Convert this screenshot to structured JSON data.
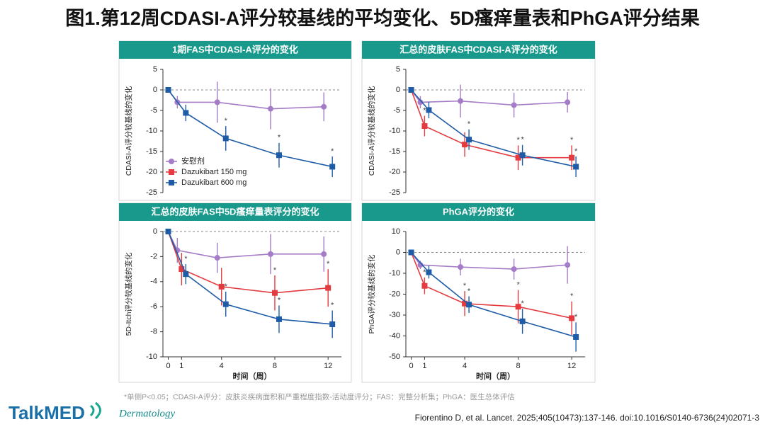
{
  "title": "图1.第12周CDASI-A评分较基线的平均变化、5D瘙痒量表和PhGA评分结果",
  "chart_data": [
    {
      "type": "line",
      "title": "1期FAS中CDASI-A评分的变化",
      "y_label": "CDASI-A评分较基线的变化",
      "x": [
        0,
        1,
        4,
        8,
        12
      ],
      "xlim": [
        -0.4,
        13
      ],
      "ylim": [
        -25,
        5
      ],
      "yticks": [
        5,
        0,
        -5,
        -10,
        -15,
        -20,
        -25
      ],
      "zero_line": true,
      "legend": "lower left",
      "series": [
        {
          "name": "安慰剂",
          "color": "#a57cc8",
          "marker": "circle",
          "values": [
            0,
            -3,
            -3,
            -4.6,
            -4.1
          ],
          "errors": [
            0,
            1.5,
            5,
            5,
            3.5
          ],
          "significance": [
            null,
            null,
            null,
            null,
            null
          ]
        },
        {
          "name": "Dazukibart 150 mg",
          "color": "#e33b3f",
          "marker": "square",
          "values": [
            null,
            null,
            null,
            null,
            null
          ],
          "errors": [
            null,
            null,
            null,
            null,
            null
          ],
          "significance": [
            null,
            null,
            null,
            null,
            null
          ]
        },
        {
          "name": "Dazukibart 600 mg",
          "color": "#1f5ca8",
          "marker": "square",
          "values": [
            0,
            -5.6,
            -11.8,
            -15.9,
            -18.7
          ],
          "errors": [
            0,
            2,
            3,
            3,
            2.5
          ],
          "significance": [
            null,
            null,
            "*",
            "*",
            "*"
          ]
        }
      ]
    },
    {
      "type": "line",
      "title": "汇总的皮肤FAS中CDASI-A评分的变化",
      "y_label": "CDASI-A评分较基线的变化",
      "x": [
        0,
        1,
        4,
        8,
        12
      ],
      "xlim": [
        -0.4,
        13
      ],
      "ylim": [
        -25,
        5
      ],
      "yticks": [
        5,
        0,
        -5,
        -10,
        -15,
        -20,
        -25
      ],
      "zero_line": true,
      "series": [
        {
          "name": "安慰剂",
          "color": "#a57cc8",
          "marker": "circle",
          "values": [
            0,
            -3,
            -2.7,
            -3.7,
            -3
          ],
          "errors": [
            0,
            1.5,
            4,
            3,
            2.5
          ],
          "significance": [
            null,
            null,
            null,
            null,
            null
          ]
        },
        {
          "name": "Dazukibart 150 mg",
          "color": "#e33b3f",
          "marker": "square",
          "values": [
            0,
            -8.8,
            -13.3,
            -16.5,
            -16.5
          ],
          "errors": [
            0,
            2.5,
            3,
            3,
            3
          ],
          "significance": [
            null,
            "*",
            null,
            "*",
            "*"
          ]
        },
        {
          "name": "Dazukibart 600 mg",
          "color": "#1f5ca8",
          "marker": "square",
          "values": [
            0,
            -4.9,
            -12.1,
            -15.9,
            -18.7
          ],
          "errors": [
            0,
            2,
            2.5,
            2.5,
            2.5
          ],
          "significance": [
            null,
            null,
            "*",
            "*",
            "*"
          ]
        }
      ]
    },
    {
      "type": "line",
      "title": "汇总的皮肤FAS中5D瘙痒量表评分的变化",
      "y_label": "5D-Itch评分较基线的变化",
      "x_label": "时间（周）",
      "x": [
        0,
        1,
        4,
        8,
        12
      ],
      "xlim": [
        -0.4,
        13
      ],
      "xticks": [
        0,
        1,
        4,
        8,
        12
      ],
      "ylim": [
        -10,
        0
      ],
      "yticks": [
        0,
        -2,
        -4,
        -6,
        -8,
        -10
      ],
      "zero_line": true,
      "series": [
        {
          "name": "安慰剂",
          "color": "#a57cc8",
          "marker": "circle",
          "values": [
            0,
            -1.5,
            -2.1,
            -1.8,
            -1.8
          ],
          "errors": [
            0,
            1,
            1.2,
            1.6,
            1.4
          ],
          "significance": [
            null,
            null,
            null,
            null,
            null
          ]
        },
        {
          "name": "Dazukibart 150 mg",
          "color": "#e33b3f",
          "marker": "square",
          "values": [
            0,
            -3,
            -4.4,
            -4.9,
            -4.5
          ],
          "errors": [
            0,
            1.3,
            1.5,
            1.4,
            1.5
          ],
          "significance": [
            null,
            null,
            null,
            "*",
            "*"
          ]
        },
        {
          "name": "Dazukibart 600 mg",
          "color": "#1f5ca8",
          "marker": "square",
          "values": [
            0,
            -3.4,
            -5.8,
            -7,
            -7.4
          ],
          "errors": [
            0,
            0.8,
            1,
            1.1,
            1.1
          ],
          "significance": [
            null,
            "*",
            "*",
            "*",
            "*"
          ]
        }
      ]
    },
    {
      "type": "line",
      "title": "PhGA评分的变化",
      "y_label": "PhGA评分较基线的变化",
      "x_label": "时间（周）",
      "x": [
        0,
        1,
        4,
        8,
        12
      ],
      "xlim": [
        -0.4,
        13
      ],
      "xticks": [
        0,
        1,
        4,
        8,
        12
      ],
      "ylim": [
        -50,
        10
      ],
      "yticks": [
        10,
        0,
        -10,
        -20,
        -30,
        -40,
        -50
      ],
      "zero_line": true,
      "series": [
        {
          "name": "安慰剂",
          "color": "#a57cc8",
          "marker": "circle",
          "values": [
            0,
            -6,
            -7,
            -8,
            -6
          ],
          "errors": [
            0,
            2,
            4,
            5,
            9
          ],
          "significance": [
            null,
            null,
            null,
            null,
            null
          ]
        },
        {
          "name": "Dazukibart 150 mg",
          "color": "#e33b3f",
          "marker": "square",
          "values": [
            0,
            -16,
            -24.5,
            -26,
            -31.5
          ],
          "errors": [
            0,
            4,
            6,
            8,
            8
          ],
          "significance": [
            null,
            "*",
            "*",
            "*",
            "*"
          ]
        },
        {
          "name": "Dazukibart 600 mg",
          "color": "#1f5ca8",
          "marker": "square",
          "values": [
            0,
            -9.5,
            -25,
            -33,
            -40.5
          ],
          "errors": [
            0,
            3,
            4,
            6,
            7
          ],
          "significance": [
            null,
            null,
            "*",
            "*",
            "*"
          ]
        }
      ]
    }
  ],
  "footnote": "*单侧P<0.05；CDASI-A评分：皮肤炎疾病面积和严重程度指数-活动度评分；FAS：完整分析集；PhGA：医生总体评估",
  "logo": {
    "brand": "TalkMED",
    "tagline": "Dermatology"
  },
  "citation": "Fiorentino D, et al. Lancet. 2025;405(10473):137-146. doi:10.1016/S0140-6736(24)02071-3"
}
